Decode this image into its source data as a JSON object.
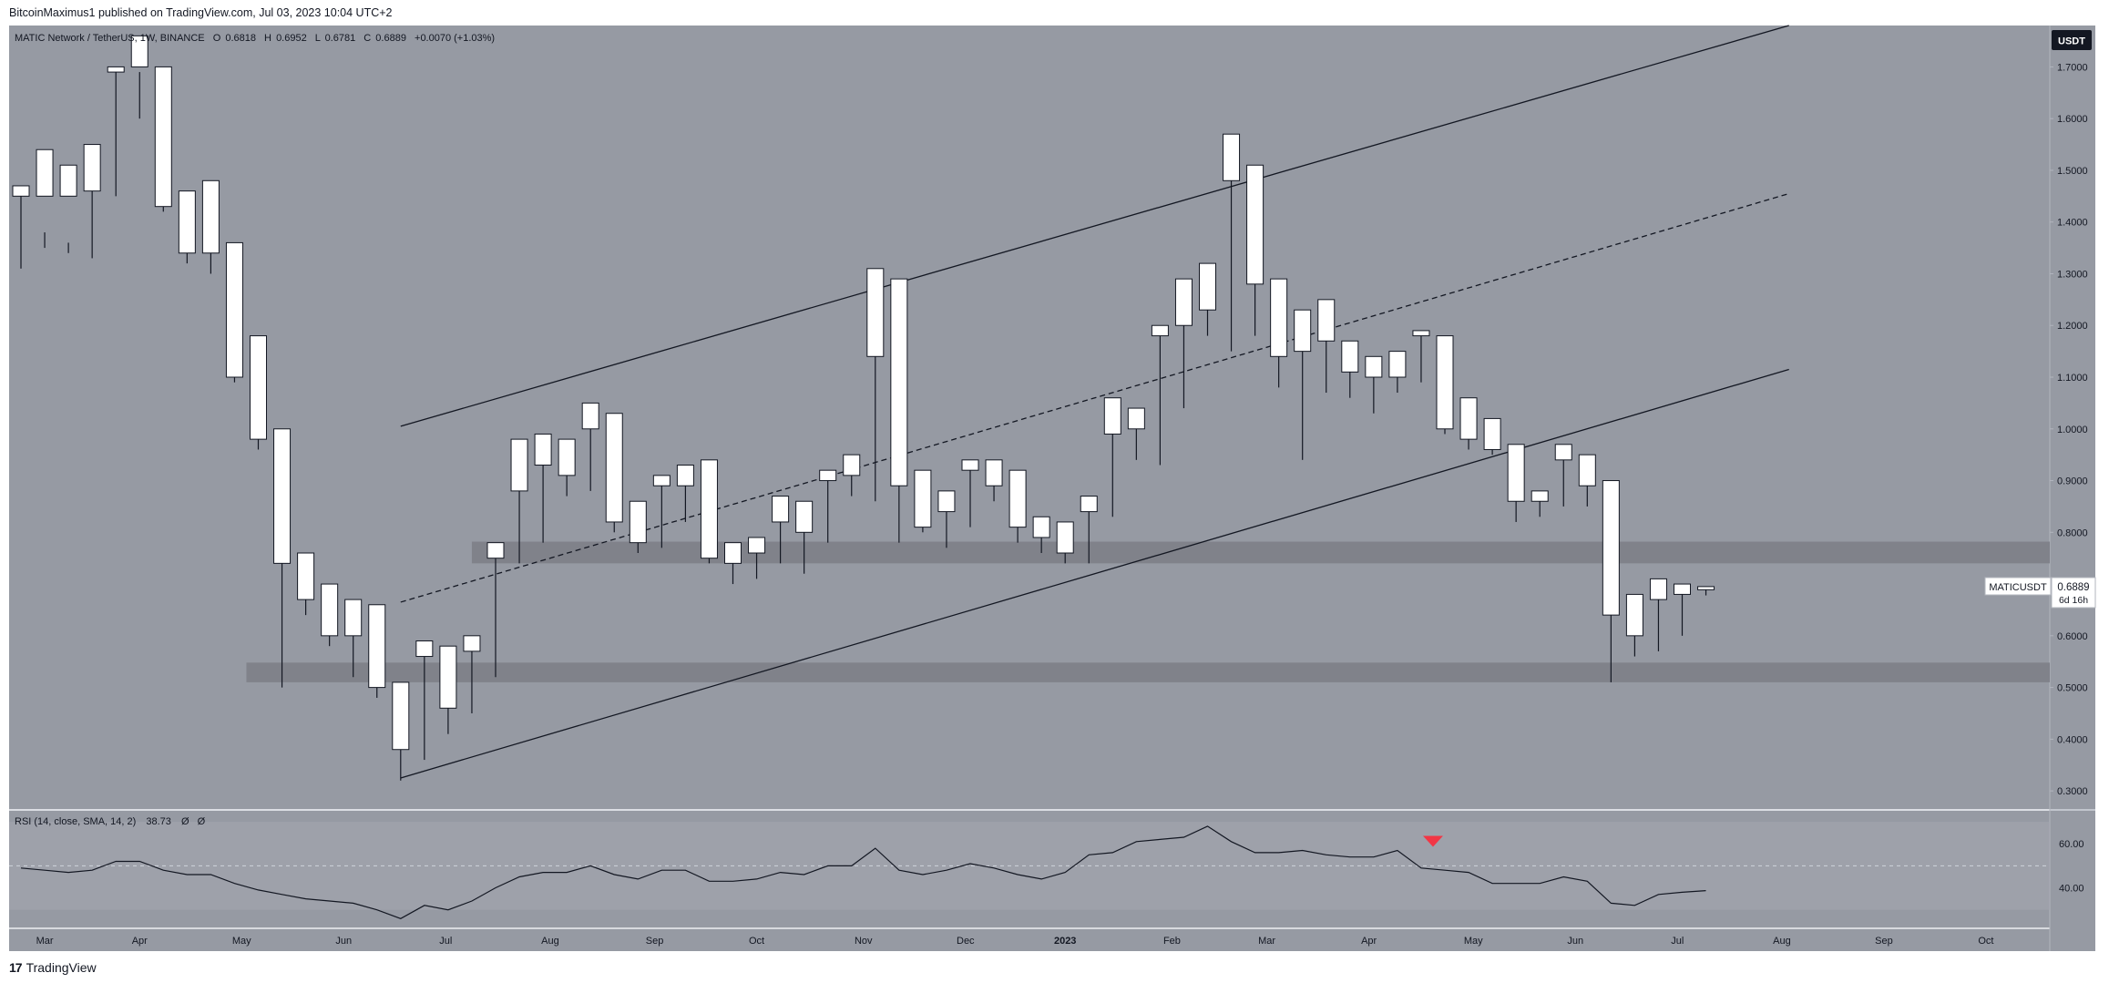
{
  "header": {
    "published": "BitcoinMaximus1 published on TradingView.com, Jul 03, 2023 10:04 UTC+2"
  },
  "legend": {
    "symbol": "MATIC Network / TetherUS, 1W, BINANCE",
    "o_label": "O",
    "o": "0.6818",
    "h_label": "H",
    "h": "0.6952",
    "l_label": "L",
    "l": "0.6781",
    "c_label": "C",
    "c": "0.6889",
    "change": "+0.0070 (+1.03%)"
  },
  "currency_badge": "USDT",
  "price_tag": {
    "symbol": "MATICUSDT",
    "price": "0.6889",
    "countdown": "6d 16h"
  },
  "rsi_legend": {
    "label": "RSI (14, close, SMA, 14, 2)",
    "value": "38.73",
    "extra1": "Ø",
    "extra2": "Ø"
  },
  "footer": {
    "brand": "TradingView"
  },
  "colors": {
    "chart_bg": "#969aa3",
    "panel_bg": "#ffffff",
    "bull_body": "#ffffff",
    "bear_body": "#131722",
    "zone": "#7e8189",
    "marker": "#f23645"
  },
  "chart_data": {
    "type": "candlestick",
    "timeframe": "1W",
    "price_axis": {
      "ylim": [
        0.265,
        1.78
      ],
      "ticks": [
        "1.7000",
        "1.6000",
        "1.5000",
        "1.4000",
        "1.3000",
        "1.2000",
        "1.1000",
        "1.0000",
        "0.9000",
        "0.8000",
        "0.7000",
        "0.6000",
        "0.5000",
        "0.4000",
        "0.3000"
      ]
    },
    "rsi_axis": {
      "ylim": [
        22,
        75
      ],
      "ticks": [
        "60.00",
        "40.00"
      ],
      "upper_band": 70,
      "mid": 50,
      "lower_band": 30
    },
    "time_axis": {
      "labels": [
        "Mar",
        "Apr",
        "May",
        "Jun",
        "Jul",
        "Aug",
        "Sep",
        "Oct",
        "Nov",
        "Dec",
        "2023",
        "Feb",
        "Mar",
        "Apr",
        "May",
        "Jun",
        "Jul",
        "Aug",
        "Sep",
        "Oct"
      ],
      "label_weeks": [
        1,
        5,
        9.3,
        13.6,
        17.9,
        22.3,
        26.7,
        31,
        35.5,
        39.8,
        44,
        48.5,
        52.5,
        56.8,
        61.2,
        65.5,
        69.8,
        74.2,
        78.5,
        82.8
      ]
    },
    "candles": [
      [
        0.0,
        1.45,
        1.47,
        1.31,
        1.45
      ],
      [
        1.45,
        1.45,
        1.54,
        1.35,
        1.38
      ],
      [
        1.38,
        1.45,
        1.51,
        1.34,
        1.36
      ],
      [
        1.36,
        1.46,
        1.55,
        1.33,
        1.46
      ],
      [
        1.46,
        1.69,
        1.7,
        1.45,
        1.69
      ],
      [
        1.69,
        1.7,
        1.76,
        1.6,
        1.69
      ],
      [
        1.69,
        1.43,
        1.7,
        1.42,
        1.43
      ],
      [
        1.43,
        1.34,
        1.46,
        1.32,
        1.34
      ],
      [
        1.34,
        1.34,
        1.48,
        1.3,
        1.34
      ],
      [
        1.34,
        1.1,
        1.36,
        1.09,
        1.1
      ],
      [
        1.1,
        0.98,
        1.18,
        0.96,
        0.98
      ],
      [
        0.98,
        0.74,
        1.0,
        0.5,
        0.74
      ],
      [
        0.74,
        0.67,
        0.76,
        0.64,
        0.67
      ],
      [
        0.67,
        0.6,
        0.7,
        0.58,
        0.6
      ],
      [
        0.6,
        0.6,
        0.67,
        0.52,
        0.6
      ],
      [
        0.6,
        0.5,
        0.66,
        0.48,
        0.5
      ],
      [
        0.5,
        0.38,
        0.51,
        0.32,
        0.38
      ],
      [
        0.38,
        0.56,
        0.59,
        0.36,
        0.56
      ],
      [
        0.56,
        0.46,
        0.58,
        0.41,
        0.46
      ],
      [
        0.46,
        0.57,
        0.6,
        0.45,
        0.57
      ],
      [
        0.57,
        0.75,
        0.78,
        0.52,
        0.75
      ],
      [
        0.75,
        0.88,
        0.98,
        0.74,
        0.88
      ],
      [
        0.88,
        0.93,
        0.99,
        0.78,
        0.93
      ],
      [
        0.93,
        0.91,
        0.98,
        0.87,
        0.91
      ],
      [
        0.91,
        1.0,
        1.05,
        0.88,
        1.0
      ],
      [
        1.0,
        0.82,
        1.03,
        0.8,
        0.82
      ],
      [
        0.82,
        0.78,
        0.86,
        0.76,
        0.78
      ],
      [
        0.78,
        0.89,
        0.91,
        0.77,
        0.89
      ],
      [
        0.89,
        0.89,
        0.93,
        0.82,
        0.89
      ],
      [
        0.89,
        0.75,
        0.94,
        0.74,
        0.75
      ],
      [
        0.75,
        0.74,
        0.78,
        0.7,
        0.74
      ],
      [
        0.74,
        0.76,
        0.79,
        0.71,
        0.76
      ],
      [
        0.76,
        0.82,
        0.87,
        0.74,
        0.82
      ],
      [
        0.82,
        0.8,
        0.86,
        0.72,
        0.8
      ],
      [
        0.8,
        0.9,
        0.92,
        0.78,
        0.9
      ],
      [
        0.9,
        0.91,
        0.95,
        0.87,
        0.91
      ],
      [
        0.91,
        1.14,
        1.31,
        0.86,
        1.14
      ],
      [
        1.14,
        0.89,
        1.29,
        0.78,
        0.89
      ],
      [
        0.89,
        0.81,
        0.92,
        0.8,
        0.81
      ],
      [
        0.81,
        0.84,
        0.88,
        0.77,
        0.84
      ],
      [
        0.84,
        0.92,
        0.94,
        0.81,
        0.92
      ],
      [
        0.92,
        0.89,
        0.94,
        0.86,
        0.89
      ],
      [
        0.89,
        0.81,
        0.92,
        0.78,
        0.81
      ],
      [
        0.81,
        0.79,
        0.83,
        0.76,
        0.79
      ],
      [
        0.79,
        0.76,
        0.82,
        0.74,
        0.76
      ],
      [
        0.76,
        0.84,
        0.87,
        0.74,
        0.84
      ],
      [
        0.84,
        0.99,
        1.06,
        0.83,
        0.99
      ],
      [
        0.99,
        1.0,
        1.04,
        0.94,
        1.0
      ],
      [
        1.0,
        1.18,
        1.2,
        0.93,
        1.18
      ],
      [
        1.18,
        1.2,
        1.29,
        1.04,
        1.2
      ],
      [
        1.2,
        1.23,
        1.32,
        1.18,
        1.23
      ],
      [
        1.23,
        1.48,
        1.57,
        1.15,
        1.48
      ],
      [
        1.48,
        1.28,
        1.51,
        1.18,
        1.28
      ],
      [
        1.28,
        1.14,
        1.29,
        1.08,
        1.14
      ],
      [
        1.14,
        1.15,
        1.23,
        0.94,
        1.15
      ],
      [
        1.15,
        1.17,
        1.25,
        1.07,
        1.17
      ],
      [
        1.17,
        1.11,
        1.17,
        1.06,
        1.11
      ],
      [
        1.11,
        1.1,
        1.14,
        1.03,
        1.1
      ],
      [
        1.1,
        1.1,
        1.15,
        1.07,
        1.1
      ],
      [
        1.1,
        1.18,
        1.19,
        1.09,
        1.18
      ],
      [
        1.18,
        1.0,
        1.18,
        0.99,
        1.0
      ],
      [
        1.0,
        0.98,
        1.06,
        0.96,
        0.98
      ],
      [
        0.98,
        0.96,
        1.02,
        0.95,
        0.96
      ],
      [
        0.96,
        0.86,
        0.97,
        0.82,
        0.86
      ],
      [
        0.86,
        0.86,
        0.88,
        0.83,
        0.86
      ],
      [
        0.86,
        0.94,
        0.97,
        0.85,
        0.94
      ],
      [
        0.94,
        0.89,
        0.95,
        0.85,
        0.89
      ],
      [
        0.89,
        0.64,
        0.9,
        0.51,
        0.64
      ],
      [
        0.64,
        0.6,
        0.68,
        0.56,
        0.6
      ],
      [
        0.6,
        0.67,
        0.71,
        0.57,
        0.67
      ],
      [
        0.67,
        0.68,
        0.7,
        0.6,
        0.68
      ],
      [
        0.682,
        0.689,
        0.695,
        0.678,
        0.689
      ]
    ],
    "channel": {
      "upper": [
        [
          16,
          1.005
        ],
        [
          74.5,
          1.78
        ]
      ],
      "middle": [
        [
          16,
          0.665
        ],
        [
          74.5,
          1.455
        ]
      ],
      "lower": [
        [
          16,
          0.325
        ],
        [
          74.5,
          1.115
        ]
      ]
    },
    "zones": [
      {
        "week_from": 19,
        "week_to": 90,
        "from": 0.74,
        "to": 0.782
      },
      {
        "week_from": 9.5,
        "week_to": 90,
        "from": 0.51,
        "to": 0.548
      }
    ],
    "rsi": [
      [
        0,
        49
      ],
      [
        1,
        48
      ],
      [
        2,
        47
      ],
      [
        3,
        48
      ],
      [
        4,
        52
      ],
      [
        5,
        52
      ],
      [
        6,
        48
      ],
      [
        7,
        46
      ],
      [
        8,
        46
      ],
      [
        9,
        42
      ],
      [
        10,
        39
      ],
      [
        11,
        37
      ],
      [
        12,
        35
      ],
      [
        13,
        34
      ],
      [
        14,
        33
      ],
      [
        15,
        30
      ],
      [
        16,
        26
      ],
      [
        17,
        32
      ],
      [
        18,
        30
      ],
      [
        19,
        34
      ],
      [
        20,
        40
      ],
      [
        21,
        45
      ],
      [
        22,
        47
      ],
      [
        23,
        47
      ],
      [
        24,
        50
      ],
      [
        25,
        46
      ],
      [
        26,
        44
      ],
      [
        27,
        48
      ],
      [
        28,
        48
      ],
      [
        29,
        43
      ],
      [
        30,
        43
      ],
      [
        31,
        44
      ],
      [
        32,
        47
      ],
      [
        33,
        46
      ],
      [
        34,
        50
      ],
      [
        35,
        50
      ],
      [
        36,
        58
      ],
      [
        37,
        48
      ],
      [
        38,
        46
      ],
      [
        39,
        48
      ],
      [
        40,
        51
      ],
      [
        41,
        49
      ],
      [
        42,
        46
      ],
      [
        43,
        44
      ],
      [
        44,
        47
      ],
      [
        45,
        55
      ],
      [
        46,
        56
      ],
      [
        47,
        61
      ],
      [
        48,
        62
      ],
      [
        49,
        63
      ],
      [
        50,
        68
      ],
      [
        51,
        61
      ],
      [
        52,
        56
      ],
      [
        53,
        56
      ],
      [
        54,
        57
      ],
      [
        55,
        55
      ],
      [
        56,
        54
      ],
      [
        57,
        54
      ],
      [
        58,
        57
      ],
      [
        59,
        49
      ],
      [
        60,
        48
      ],
      [
        61,
        47
      ],
      [
        62,
        42
      ],
      [
        63,
        42
      ],
      [
        64,
        42
      ],
      [
        65,
        45
      ],
      [
        66,
        43
      ],
      [
        67,
        33
      ],
      [
        68,
        32
      ],
      [
        69,
        37
      ],
      [
        70,
        38
      ],
      [
        71,
        38.73
      ]
    ],
    "rsi_marker": {
      "week": 59.5,
      "value": 57
    }
  }
}
